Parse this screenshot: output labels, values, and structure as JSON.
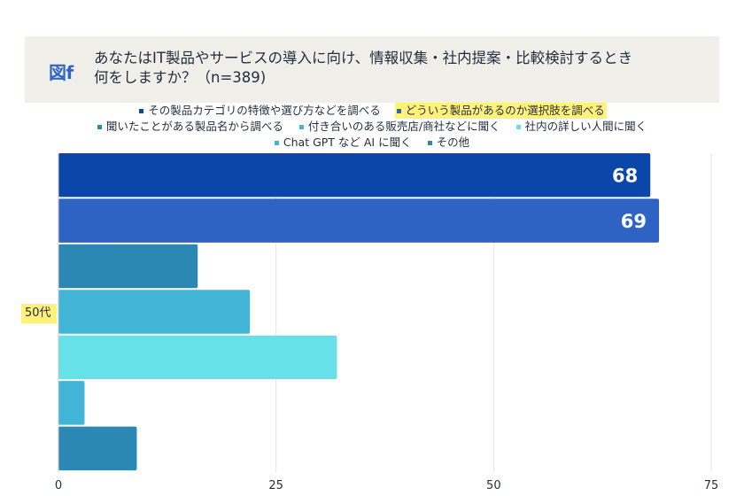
{
  "figure": {
    "label": "図f",
    "title_line1": "あなたはIT製品やサービスの導入に向け、情報収集・社内提案・比較検討するとき",
    "title_line2": "何をしますか？（n=389)"
  },
  "colors": {
    "title_bg": "#f1efea",
    "highlight": "#fff27a",
    "gridline": "#e3e3e3"
  },
  "chart_data": {
    "type": "bar",
    "orientation": "horizontal",
    "categories": [
      "50代"
    ],
    "xlim": [
      0,
      75
    ],
    "x_ticks": [
      0,
      25,
      50,
      75
    ],
    "grid": true,
    "legend_position": "top",
    "series": [
      {
        "name": "その製品カテゴリの特徴や選び方などを調べる",
        "values": [
          68
        ],
        "color": "#0a47a9",
        "label": "68",
        "highlight": false
      },
      {
        "name": "どういう製品があるのか選択肢を調べる",
        "values": [
          69
        ],
        "color": "#2e63c4",
        "label": "69",
        "highlight": true
      },
      {
        "name": "聞いたことがある製品名から調べる",
        "values": [
          16
        ],
        "color": "#2b87b4",
        "label": "",
        "highlight": false
      },
      {
        "name": "付き合いのある販売店/商社などに聞く",
        "values": [
          22
        ],
        "color": "#42b5d6",
        "label": "",
        "highlight": false
      },
      {
        "name": "社内の詳しい人間に聞く",
        "values": [
          32
        ],
        "color": "#67e1e8",
        "label": "",
        "highlight": false
      },
      {
        "name": "Chat GPT など AI に聞く",
        "values": [
          3
        ],
        "color": "#42b5d6",
        "label": "",
        "highlight": false
      },
      {
        "name": "その他",
        "values": [
          9
        ],
        "color": "#2b87b4",
        "label": "",
        "highlight": false
      }
    ],
    "legend_rows": [
      [
        0,
        1
      ],
      [
        2,
        3,
        4
      ],
      [
        5,
        6
      ]
    ]
  }
}
